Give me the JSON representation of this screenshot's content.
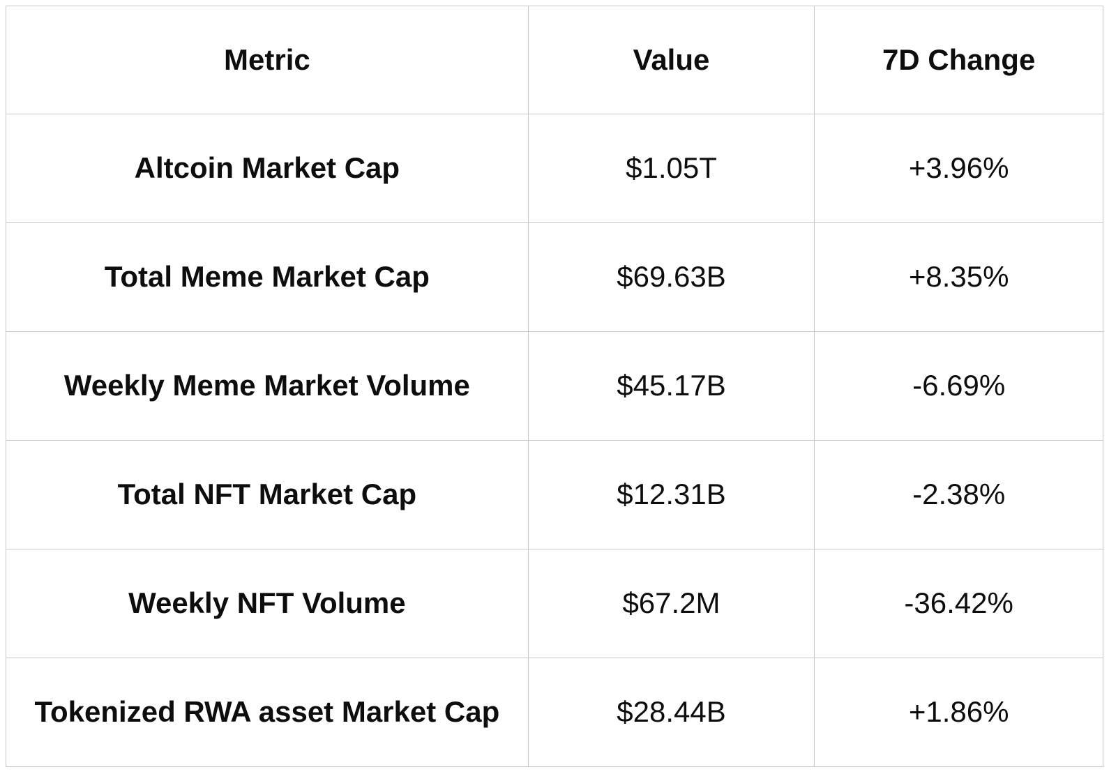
{
  "table": {
    "columns": [
      "Metric",
      "Value",
      "7D Change"
    ],
    "rows": [
      {
        "metric": "Altcoin Market Cap",
        "value": "$1.05T",
        "change": "+3.96%"
      },
      {
        "metric": "Total Meme Market Cap",
        "value": "$69.63B",
        "change": "+8.35%"
      },
      {
        "metric": "Weekly Meme Market Volume",
        "value": "$45.17B",
        "change": "-6.69%"
      },
      {
        "metric": "Total NFT Market Cap",
        "value": "$12.31B",
        "change": "-2.38%"
      },
      {
        "metric": "Weekly NFT Volume",
        "value": "$67.2M",
        "change": "-36.42%"
      },
      {
        "metric": "Tokenized RWA asset Market Cap",
        "value": "$28.44B",
        "change": "+1.86%"
      }
    ]
  },
  "chart_data": {
    "type": "table",
    "columns": [
      "Metric",
      "Value",
      "7D Change"
    ],
    "rows": [
      [
        "Altcoin Market Cap",
        "$1.05T",
        "+3.96%"
      ],
      [
        "Total Meme Market Cap",
        "$69.63B",
        "+8.35%"
      ],
      [
        "Weekly Meme Market Volume",
        "$45.17B",
        "-6.69%"
      ],
      [
        "Total NFT Market Cap",
        "$12.31B",
        "-2.38%"
      ],
      [
        "Weekly NFT Volume",
        "$67.2M",
        "-36.42%"
      ],
      [
        "Tokenized RWA asset Market Cap",
        "$28.44B",
        "+1.86%"
      ]
    ],
    "values_numeric_usd": [
      1050000000000,
      69630000000,
      45170000000,
      12310000000,
      67200000,
      28440000000
    ],
    "change_percent_7d": [
      3.96,
      8.35,
      -6.69,
      -2.38,
      -36.42,
      1.86
    ]
  },
  "colors": {
    "background": "#ffffff",
    "border": "#c7c7c7",
    "text": "#0d0d0d"
  }
}
